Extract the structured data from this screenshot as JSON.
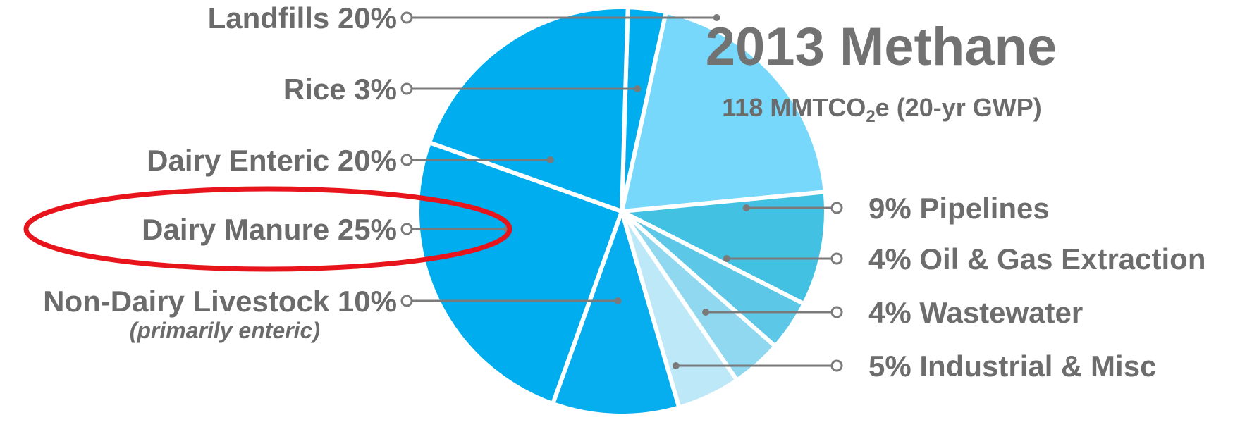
{
  "chart_data": {
    "type": "pie",
    "title": "2013 Methane",
    "subtitle_main": "118 MMTCO",
    "subtitle_sub": "2",
    "subtitle_tail": "e (20-yr GWP)",
    "slices": [
      {
        "label": "Rice  3%",
        "value": 3,
        "color": "#00aeef",
        "side": "left"
      },
      {
        "label": "Landfills 20%",
        "value": 20,
        "color": "#77d8fb",
        "side": "left"
      },
      {
        "label": "9% Pipelines",
        "value": 9,
        "color": "#42c1e3",
        "side": "right"
      },
      {
        "label": "4% Oil & Gas Extraction",
        "value": 4,
        "color": "#5cc7e6",
        "side": "right"
      },
      {
        "label": "4% Wastewater",
        "value": 4,
        "color": "#8fd8ef",
        "side": "right"
      },
      {
        "label": "5% Industrial & Misc",
        "value": 5,
        "color": "#bde8f8",
        "side": "right"
      },
      {
        "label": "Non-Dairy Livestock 10%",
        "value": 10,
        "color": "#06aef0",
        "side": "left",
        "note": "(primarily enteric)"
      },
      {
        "label": "Dairy Manure 25%",
        "value": 25,
        "color": "#00adee",
        "side": "left",
        "highlight": true
      },
      {
        "label": "Dairy Enteric 20%",
        "value": 20,
        "color": "#00adee",
        "side": "left"
      }
    ],
    "highlight_color": "#e8141b"
  }
}
